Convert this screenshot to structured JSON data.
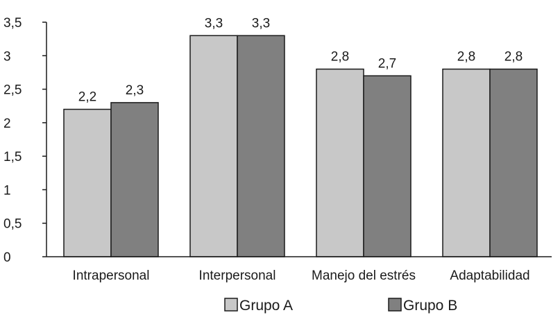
{
  "chart_data": {
    "type": "bar",
    "categories": [
      "Intrapersonal",
      "Interpersonal",
      "Manejo del estrés",
      "Adaptabilidad"
    ],
    "series": [
      {
        "name": "Grupo A",
        "values": [
          2.2,
          3.3,
          2.8,
          2.8
        ],
        "color": "#c8c8c8"
      },
      {
        "name": "Grupo B",
        "values": [
          2.3,
          3.3,
          2.7,
          2.8
        ],
        "color": "#808080"
      }
    ],
    "data_labels": [
      [
        "2,2",
        "3,3",
        "2,8",
        "2,8"
      ],
      [
        "2,3",
        "3,3",
        "2,7",
        "2,8"
      ]
    ],
    "yticks": [
      0,
      0.5,
      1,
      1.5,
      2,
      2.5,
      3,
      3.5
    ],
    "ytick_labels": [
      "0",
      "0,5",
      "1",
      "1,5",
      "2",
      "2,5",
      "3",
      "3,5"
    ],
    "ylim": [
      0,
      3.5
    ],
    "title": "",
    "xlabel": "",
    "ylabel": "",
    "grid": false,
    "legend_position": "bottom"
  }
}
